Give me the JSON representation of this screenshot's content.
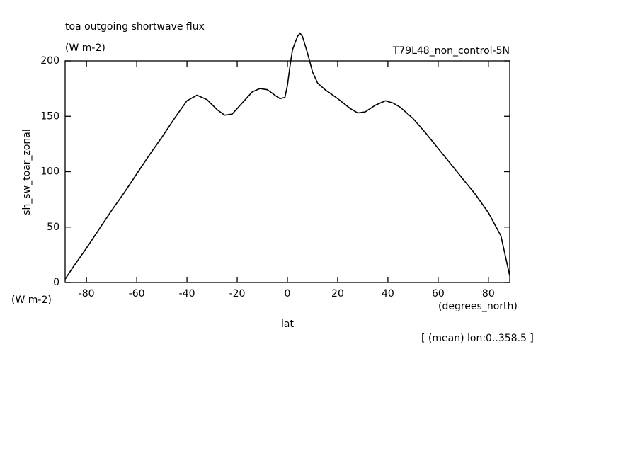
{
  "chart_data": {
    "type": "line",
    "title": "toa outgoing shortwave flux",
    "subtitle": "(W m-2)",
    "dataset_label": "T79L48_non_control-5N",
    "y_label": "sh_sw_toar_zonal",
    "y_units": "(W m-2)",
    "x_units": "(degrees_north)",
    "x_label": "lat",
    "annotation": "[ (mean) lon:0..358.5 ]",
    "color": "#000000",
    "x": [
      -88.5,
      -85,
      -80,
      -75,
      -70,
      -65,
      -60,
      -55,
      -50,
      -45,
      -40,
      -36,
      -32,
      -28,
      -25,
      -22,
      -18,
      -14,
      -11,
      -8,
      -5,
      -3,
      -1,
      0,
      1,
      2,
      4,
      5,
      6,
      8,
      10,
      12,
      15,
      20,
      25,
      28,
      31,
      35,
      39,
      42,
      45,
      50,
      55,
      60,
      65,
      70,
      75,
      80,
      85,
      88.5
    ],
    "series": [
      {
        "values": [
          3,
          15,
          31,
          48,
          65,
          81,
          98,
          115,
          131,
          148,
          164,
          169,
          165,
          156,
          151,
          152,
          162,
          172,
          175,
          174,
          169,
          166,
          167,
          178,
          195,
          210,
          222,
          225,
          222,
          207,
          190,
          180,
          174,
          166,
          157,
          153,
          154,
          160,
          164,
          162,
          158,
          148,
          135,
          121,
          107,
          93,
          79,
          63,
          42,
          6
        ]
      }
    ],
    "xlim": [
      -88.5,
      88.5
    ],
    "ylim": [
      0,
      200
    ],
    "xticks": [
      -80,
      -60,
      -40,
      -20,
      0,
      20,
      40,
      60,
      80
    ],
    "yticks": [
      0,
      50,
      100,
      150,
      200
    ]
  }
}
